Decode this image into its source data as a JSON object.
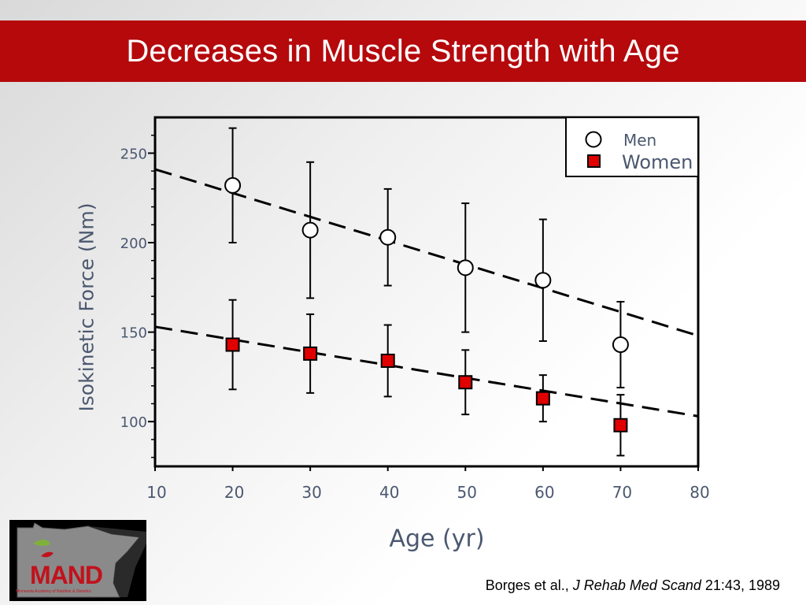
{
  "slide": {
    "title": "Decreases in Muscle Strength with Age",
    "citation": {
      "authors": "Borges et al., ",
      "journal": "J Rehab Med Scand",
      "details": " 21:43, 1989"
    },
    "logo": {
      "text": "MAND",
      "subtitle": "Minnesota Academy of Nutrition & Dietetics"
    }
  },
  "colors": {
    "title_bar": "#b5090c",
    "women_marker": "#e00000",
    "men_marker": "#ffffff",
    "axis_label": "#4b5870"
  },
  "chart_data": {
    "type": "scatter",
    "xlabel": "Age (yr)",
    "ylabel": "Isokinetic Force (Nm)",
    "xlim": [
      10,
      80
    ],
    "ylim": [
      75,
      270
    ],
    "xticks": [
      10,
      20,
      30,
      40,
      50,
      60,
      70,
      80
    ],
    "yticks": [
      100,
      150,
      200,
      250
    ],
    "grid": false,
    "legend_position": "top-right",
    "series": [
      {
        "name": "Men",
        "marker": "circle",
        "x": [
          20,
          30,
          40,
          50,
          60,
          70
        ],
        "y": [
          232,
          207,
          203,
          186,
          179,
          143
        ],
        "error": [
          32,
          38,
          27,
          36,
          34,
          24
        ],
        "trend": {
          "x": [
            10,
            80
          ],
          "y": [
            241,
            148
          ]
        }
      },
      {
        "name": "Women",
        "marker": "square",
        "x": [
          20,
          30,
          40,
          50,
          60,
          70
        ],
        "y": [
          143,
          138,
          134,
          122,
          113,
          98
        ],
        "error": [
          25,
          22,
          20,
          18,
          13,
          17
        ],
        "trend": {
          "x": [
            10,
            80
          ],
          "y": [
            153,
            103
          ]
        }
      }
    ]
  }
}
